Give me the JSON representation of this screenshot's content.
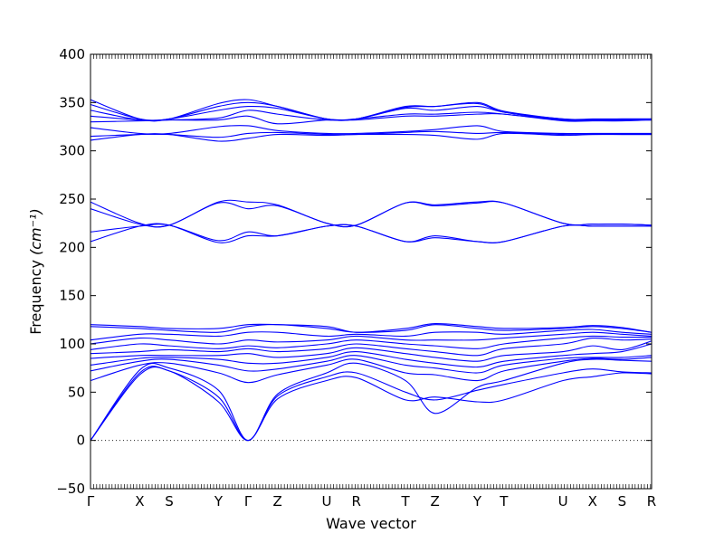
{
  "chart_data": {
    "type": "line",
    "xlabel": "Wave vector",
    "ylabel": "Frequency",
    "ylabel_unit": "(cm⁻¹)",
    "ylim": [
      -50,
      400
    ],
    "yticks": [
      -50,
      0,
      50,
      100,
      150,
      200,
      250,
      300,
      350,
      400
    ],
    "x_high_symmetry": [
      {
        "label": "Γ",
        "x": 0.0
      },
      {
        "label": "X",
        "x": 0.5
      },
      {
        "label": "S",
        "x": 0.8
      },
      {
        "label": "Y",
        "x": 1.3
      },
      {
        "label": "Γ",
        "x": 1.6
      },
      {
        "label": "Z",
        "x": 1.9
      },
      {
        "label": "U",
        "x": 2.4
      },
      {
        "label": "R",
        "x": 2.7
      },
      {
        "label": "T",
        "x": 3.2
      },
      {
        "label": "Z",
        "x": 3.5
      },
      {
        "label": "Y",
        "x": 3.93
      },
      {
        "label": "T",
        "x": 4.2
      },
      {
        "label": "U",
        "x": 4.8
      },
      {
        "label": "X",
        "x": 5.1
      },
      {
        "label": "S",
        "x": 5.4
      },
      {
        "label": "R",
        "x": 5.7
      }
    ],
    "xlim": [
      0,
      5.7
    ],
    "zero_line": true,
    "series_color": "#0000ff",
    "bands": [
      {
        "x": [
          0,
          0.5,
          0.8,
          1.3,
          1.6,
          1.9,
          2.4,
          2.7,
          3.2,
          3.5,
          3.93,
          4.2,
          4.8,
          5.1,
          5.4,
          5.7
        ],
        "y": [
          0,
          68,
          72,
          40,
          0,
          43,
          62,
          65,
          42,
          45,
          40,
          42,
          62,
          66,
          70,
          69
        ]
      },
      {
        "x": [
          0,
          0.5,
          0.8,
          1.3,
          1.6,
          1.9,
          2.4,
          2.7,
          3.2,
          3.5,
          3.93,
          4.2,
          4.8,
          5.1,
          5.4,
          5.7
        ],
        "y": [
          0,
          70,
          72,
          45,
          0,
          46,
          66,
          70,
          50,
          42,
          52,
          58,
          70,
          74,
          71,
          70
        ]
      },
      {
        "x": [
          0,
          0.5,
          0.8,
          1.3,
          1.6,
          1.9,
          2.4,
          2.7,
          3.2,
          3.5,
          3.93,
          4.2,
          4.8,
          5.1,
          5.4,
          5.7
        ],
        "y": [
          0,
          73,
          75,
          52,
          0,
          48,
          70,
          80,
          62,
          28,
          55,
          62,
          80,
          84,
          83,
          82
        ]
      },
      {
        "x": [
          0,
          0.5,
          0.8,
          1.3,
          1.6,
          1.9,
          2.4,
          2.7,
          3.2,
          3.5,
          3.93,
          4.2,
          4.8,
          5.1,
          5.4,
          5.7
        ],
        "y": [
          62,
          78,
          80,
          70,
          60,
          68,
          78,
          84,
          70,
          68,
          62,
          72,
          82,
          85,
          84,
          86
        ]
      },
      {
        "x": [
          0,
          0.5,
          0.8,
          1.3,
          1.6,
          1.9,
          2.4,
          2.7,
          3.2,
          3.5,
          3.93,
          4.2,
          4.8,
          5.1,
          5.4,
          5.7
        ],
        "y": [
          72,
          82,
          84,
          78,
          72,
          74,
          82,
          88,
          78,
          75,
          70,
          78,
          85,
          86,
          86,
          88
        ]
      },
      {
        "x": [
          0,
          0.5,
          0.8,
          1.3,
          1.6,
          1.9,
          2.4,
          2.7,
          3.2,
          3.5,
          3.93,
          4.2,
          4.8,
          5.1,
          5.4,
          5.7
        ],
        "y": [
          78,
          85,
          86,
          84,
          80,
          80,
          86,
          92,
          84,
          80,
          76,
          82,
          88,
          90,
          92,
          100
        ]
      },
      {
        "x": [
          0,
          0.5,
          0.8,
          1.3,
          1.6,
          1.9,
          2.4,
          2.7,
          3.2,
          3.5,
          3.93,
          4.2,
          4.8,
          5.1,
          5.4,
          5.7
        ],
        "y": [
          85,
          88,
          88,
          88,
          90,
          86,
          90,
          96,
          90,
          86,
          82,
          88,
          92,
          98,
          94,
          103
        ]
      },
      {
        "x": [
          0,
          0.5,
          0.8,
          1.3,
          1.6,
          1.9,
          2.4,
          2.7,
          3.2,
          3.5,
          3.93,
          4.2,
          4.8,
          5.1,
          5.4,
          5.7
        ],
        "y": [
          90,
          92,
          94,
          92,
          95,
          92,
          95,
          100,
          95,
          92,
          88,
          95,
          100,
          106,
          104,
          105
        ]
      },
      {
        "x": [
          0,
          0.5,
          0.8,
          1.3,
          1.6,
          1.9,
          2.4,
          2.7,
          3.2,
          3.5,
          3.93,
          4.2,
          4.8,
          5.1,
          5.4,
          5.7
        ],
        "y": [
          94,
          100,
          98,
          95,
          98,
          96,
          100,
          104,
          100,
          98,
          95,
          100,
          106,
          108,
          107,
          107
        ]
      },
      {
        "x": [
          0,
          0.5,
          0.8,
          1.3,
          1.6,
          1.9,
          2.4,
          2.7,
          3.2,
          3.5,
          3.93,
          4.2,
          4.8,
          5.1,
          5.4,
          5.7
        ],
        "y": [
          100,
          106,
          104,
          100,
          104,
          102,
          104,
          108,
          104,
          104,
          104,
          106,
          110,
          112,
          110,
          108
        ]
      },
      {
        "x": [
          0,
          0.5,
          0.8,
          1.3,
          1.6,
          1.9,
          2.4,
          2.7,
          3.2,
          3.5,
          3.93,
          4.2,
          4.8,
          5.1,
          5.4,
          5.7
        ],
        "y": [
          104,
          110,
          110,
          108,
          112,
          112,
          108,
          110,
          108,
          112,
          112,
          110,
          114,
          115,
          112,
          110
        ]
      },
      {
        "x": [
          0,
          0.5,
          0.8,
          1.3,
          1.6,
          1.9,
          2.4,
          2.7,
          3.2,
          3.5,
          3.93,
          4.2,
          4.8,
          5.1,
          5.4,
          5.7
        ],
        "y": [
          118,
          116,
          114,
          112,
          118,
          120,
          116,
          112,
          114,
          120,
          116,
          114,
          116,
          118,
          116,
          112
        ]
      },
      {
        "x": [
          0,
          0.5,
          0.8,
          1.3,
          1.6,
          1.9,
          2.4,
          2.7,
          3.2,
          3.5,
          3.93,
          4.2,
          4.8,
          5.1,
          5.4,
          5.7
        ],
        "y": [
          120,
          118,
          116,
          116,
          120,
          120,
          118,
          112,
          116,
          121,
          118,
          116,
          117,
          119,
          117,
          112
        ]
      },
      {
        "x": [
          0,
          0.5,
          0.8,
          1.3,
          1.6,
          1.9,
          2.4,
          2.7,
          3.2,
          3.5,
          3.93,
          4.2,
          4.8,
          5.1,
          5.4,
          5.7
        ],
        "y": [
          206,
          222,
          223,
          205,
          212,
          212,
          222,
          222,
          206,
          210,
          206,
          206,
          222,
          222,
          222,
          222
        ]
      },
      {
        "x": [
          0,
          0.5,
          0.8,
          1.3,
          1.6,
          1.9,
          2.4,
          2.7,
          3.2,
          3.5,
          3.93,
          4.2,
          4.8,
          5.1,
          5.4,
          5.7
        ],
        "y": [
          216,
          222,
          223,
          207,
          216,
          212,
          222,
          222,
          206,
          212,
          206,
          206,
          222,
          222,
          222,
          222
        ]
      },
      {
        "x": [
          0,
          0.5,
          0.8,
          1.3,
          1.6,
          1.9,
          2.4,
          2.7,
          3.2,
          3.5,
          3.93,
          4.2,
          4.8,
          5.1,
          5.4,
          5.7
        ],
        "y": [
          240,
          224,
          223,
          246,
          240,
          243,
          225,
          223,
          246,
          243,
          246,
          246,
          225,
          224,
          224,
          223
        ]
      },
      {
        "x": [
          0,
          0.5,
          0.8,
          1.3,
          1.6,
          1.9,
          2.4,
          2.7,
          3.2,
          3.5,
          3.93,
          4.2,
          4.8,
          5.1,
          5.4,
          5.7
        ],
        "y": [
          247,
          225,
          223,
          247,
          247,
          244,
          225,
          223,
          246,
          244,
          247,
          246,
          225,
          224,
          224,
          223
        ]
      },
      {
        "x": [
          0,
          0.5,
          0.8,
          1.3,
          1.6,
          1.9,
          2.4,
          2.7,
          3.2,
          3.5,
          3.93,
          4.2,
          4.8,
          5.1,
          5.4,
          5.7
        ],
        "y": [
          311,
          317,
          317,
          310,
          313,
          317,
          316,
          317,
          317,
          316,
          312,
          318,
          316,
          317,
          317,
          317
        ]
      },
      {
        "x": [
          0,
          0.5,
          0.8,
          1.3,
          1.6,
          1.9,
          2.4,
          2.7,
          3.2,
          3.5,
          3.93,
          4.2,
          4.8,
          5.1,
          5.4,
          5.7
        ],
        "y": [
          315,
          317,
          317,
          314,
          318,
          319,
          317,
          317,
          319,
          320,
          318,
          319,
          317,
          317,
          317,
          317
        ]
      },
      {
        "x": [
          0,
          0.5,
          0.8,
          1.3,
          1.6,
          1.9,
          2.4,
          2.7,
          3.2,
          3.5,
          3.93,
          4.2,
          4.8,
          5.1,
          5.4,
          5.7
        ],
        "y": [
          324,
          318,
          318,
          325,
          326,
          321,
          318,
          318,
          320,
          322,
          326,
          320,
          318,
          318,
          318,
          318
        ]
      },
      {
        "x": [
          0,
          0.5,
          0.8,
          1.3,
          1.6,
          1.9,
          2.4,
          2.7,
          3.2,
          3.5,
          3.93,
          4.2,
          4.8,
          5.1,
          5.4,
          5.7
        ],
        "y": [
          330,
          331,
          332,
          332,
          336,
          328,
          332,
          332,
          336,
          336,
          338,
          338,
          331,
          331,
          331,
          332
        ]
      },
      {
        "x": [
          0,
          0.5,
          0.8,
          1.3,
          1.6,
          1.9,
          2.4,
          2.7,
          3.2,
          3.5,
          3.93,
          4.2,
          4.8,
          5.1,
          5.4,
          5.7
        ],
        "y": [
          336,
          332,
          332,
          334,
          342,
          338,
          332,
          333,
          338,
          338,
          340,
          338,
          332,
          332,
          332,
          332
        ]
      },
      {
        "x": [
          0,
          0.5,
          0.8,
          1.3,
          1.6,
          1.9,
          2.4,
          2.7,
          3.2,
          3.5,
          3.93,
          4.2,
          4.8,
          5.1,
          5.4,
          5.7
        ],
        "y": [
          342,
          332,
          333,
          342,
          346,
          344,
          333,
          333,
          344,
          342,
          346,
          340,
          332,
          332,
          332,
          333
        ]
      },
      {
        "x": [
          0,
          0.5,
          0.8,
          1.3,
          1.6,
          1.9,
          2.4,
          2.7,
          3.2,
          3.5,
          3.93,
          4.2,
          4.8,
          5.1,
          5.4,
          5.7
        ],
        "y": [
          348,
          333,
          333,
          346,
          350,
          346,
          333,
          333,
          345,
          346,
          349,
          340,
          333,
          332,
          333,
          333
        ]
      },
      {
        "x": [
          0,
          0.5,
          0.8,
          1.3,
          1.6,
          1.9,
          2.4,
          2.7,
          3.2,
          3.5,
          3.93,
          4.2,
          4.8,
          5.1,
          5.4,
          5.7
        ],
        "y": [
          353,
          333,
          333,
          349,
          353,
          346,
          333,
          333,
          346,
          346,
          350,
          341,
          333,
          333,
          333,
          333
        ]
      }
    ]
  }
}
